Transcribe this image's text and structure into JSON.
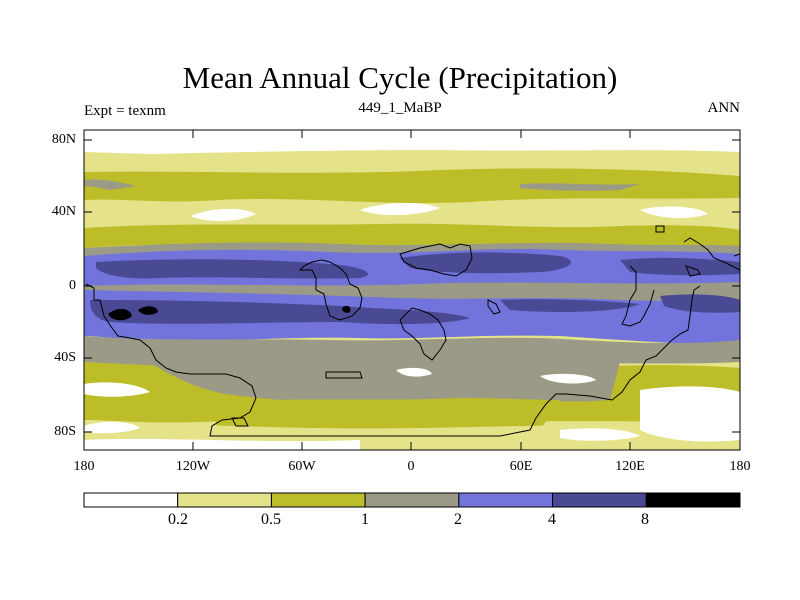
{
  "title": "Mean Annual Cycle (Precipitation)",
  "subtitle": {
    "left": "Expt = texnm",
    "center": "449_1_MaBP",
    "right": "ANN"
  },
  "map": {
    "lat_ticks": [
      "80N",
      "40N",
      "0",
      "40S",
      "80S"
    ],
    "lon_ticks": [
      "180",
      "120W",
      "60W",
      "0",
      "60E",
      "120E",
      "180"
    ],
    "levels": [
      {
        "label": "0.2",
        "color": "#ffffff"
      },
      {
        "label": "0.5",
        "color": "#e5e389"
      },
      {
        "label": "1",
        "color": "#bdbd29"
      },
      {
        "label": "2",
        "color": "#9a9a86"
      },
      {
        "label": "4",
        "color": "#7373dc"
      },
      {
        "label": "8",
        "color": "#4a4a94"
      },
      {
        "label": "",
        "color": "#000000"
      }
    ]
  }
}
